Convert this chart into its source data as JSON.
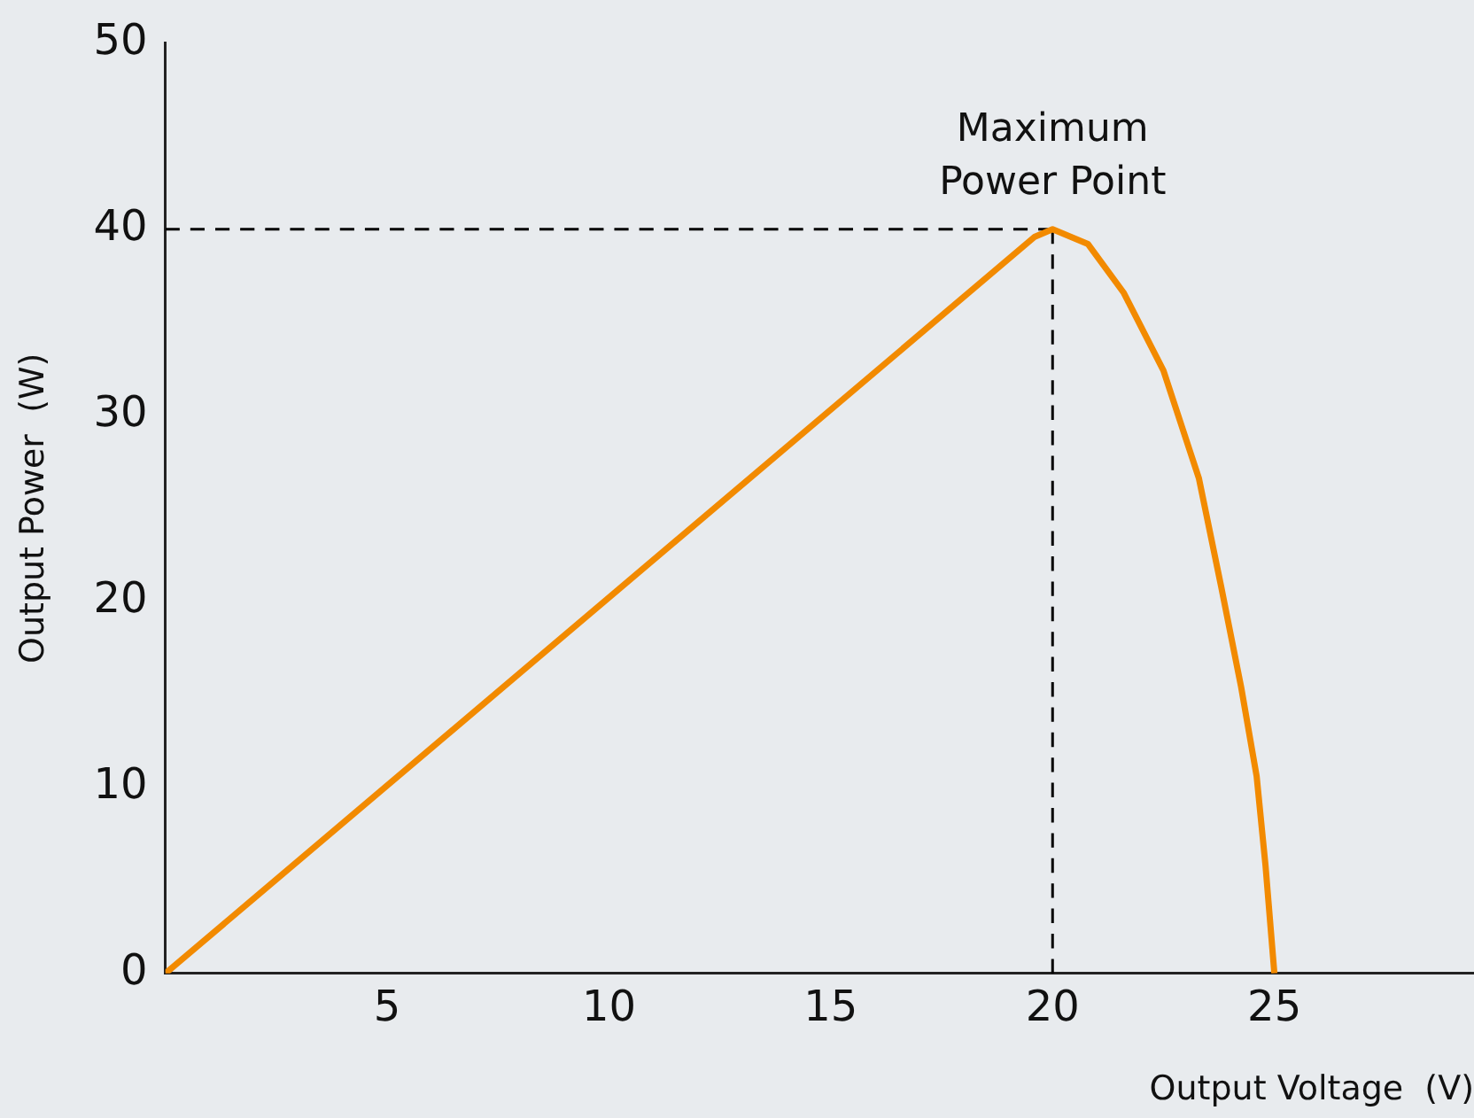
{
  "chart_data": {
    "type": "line",
    "xlabel": "Output Voltage  (V)",
    "ylabel": "Output Power  (W)",
    "xlim": [
      0,
      29.5
    ],
    "ylim": [
      0,
      50
    ],
    "xticks": [
      5,
      10,
      15,
      20,
      25
    ],
    "yticks": [
      0,
      10,
      20,
      30,
      40,
      50
    ],
    "grid": false,
    "legend": false,
    "marker": "none",
    "series": [
      {
        "color": "#f28a00",
        "line_style": "solid",
        "x": [
          0,
          19.6,
          20,
          20.8,
          21.6,
          22.5,
          23.3,
          23.8,
          24.25,
          24.6,
          24.8,
          25
        ],
        "values": [
          0,
          39.6,
          40,
          39.2,
          36.6,
          32.4,
          26.6,
          20.8,
          15.4,
          10.6,
          5.8,
          0
        ]
      },
      {
        "color": "#000000",
        "line_style": "dashed",
        "x": [
          0,
          20
        ],
        "values": [
          40,
          40
        ]
      },
      {
        "color": "#000000",
        "line_style": "dashed",
        "x": [
          20,
          20
        ],
        "values": [
          0,
          40
        ]
      }
    ],
    "annotations": [
      {
        "text": "Maximum Power Point",
        "x": 20,
        "y": 40
      }
    ]
  }
}
